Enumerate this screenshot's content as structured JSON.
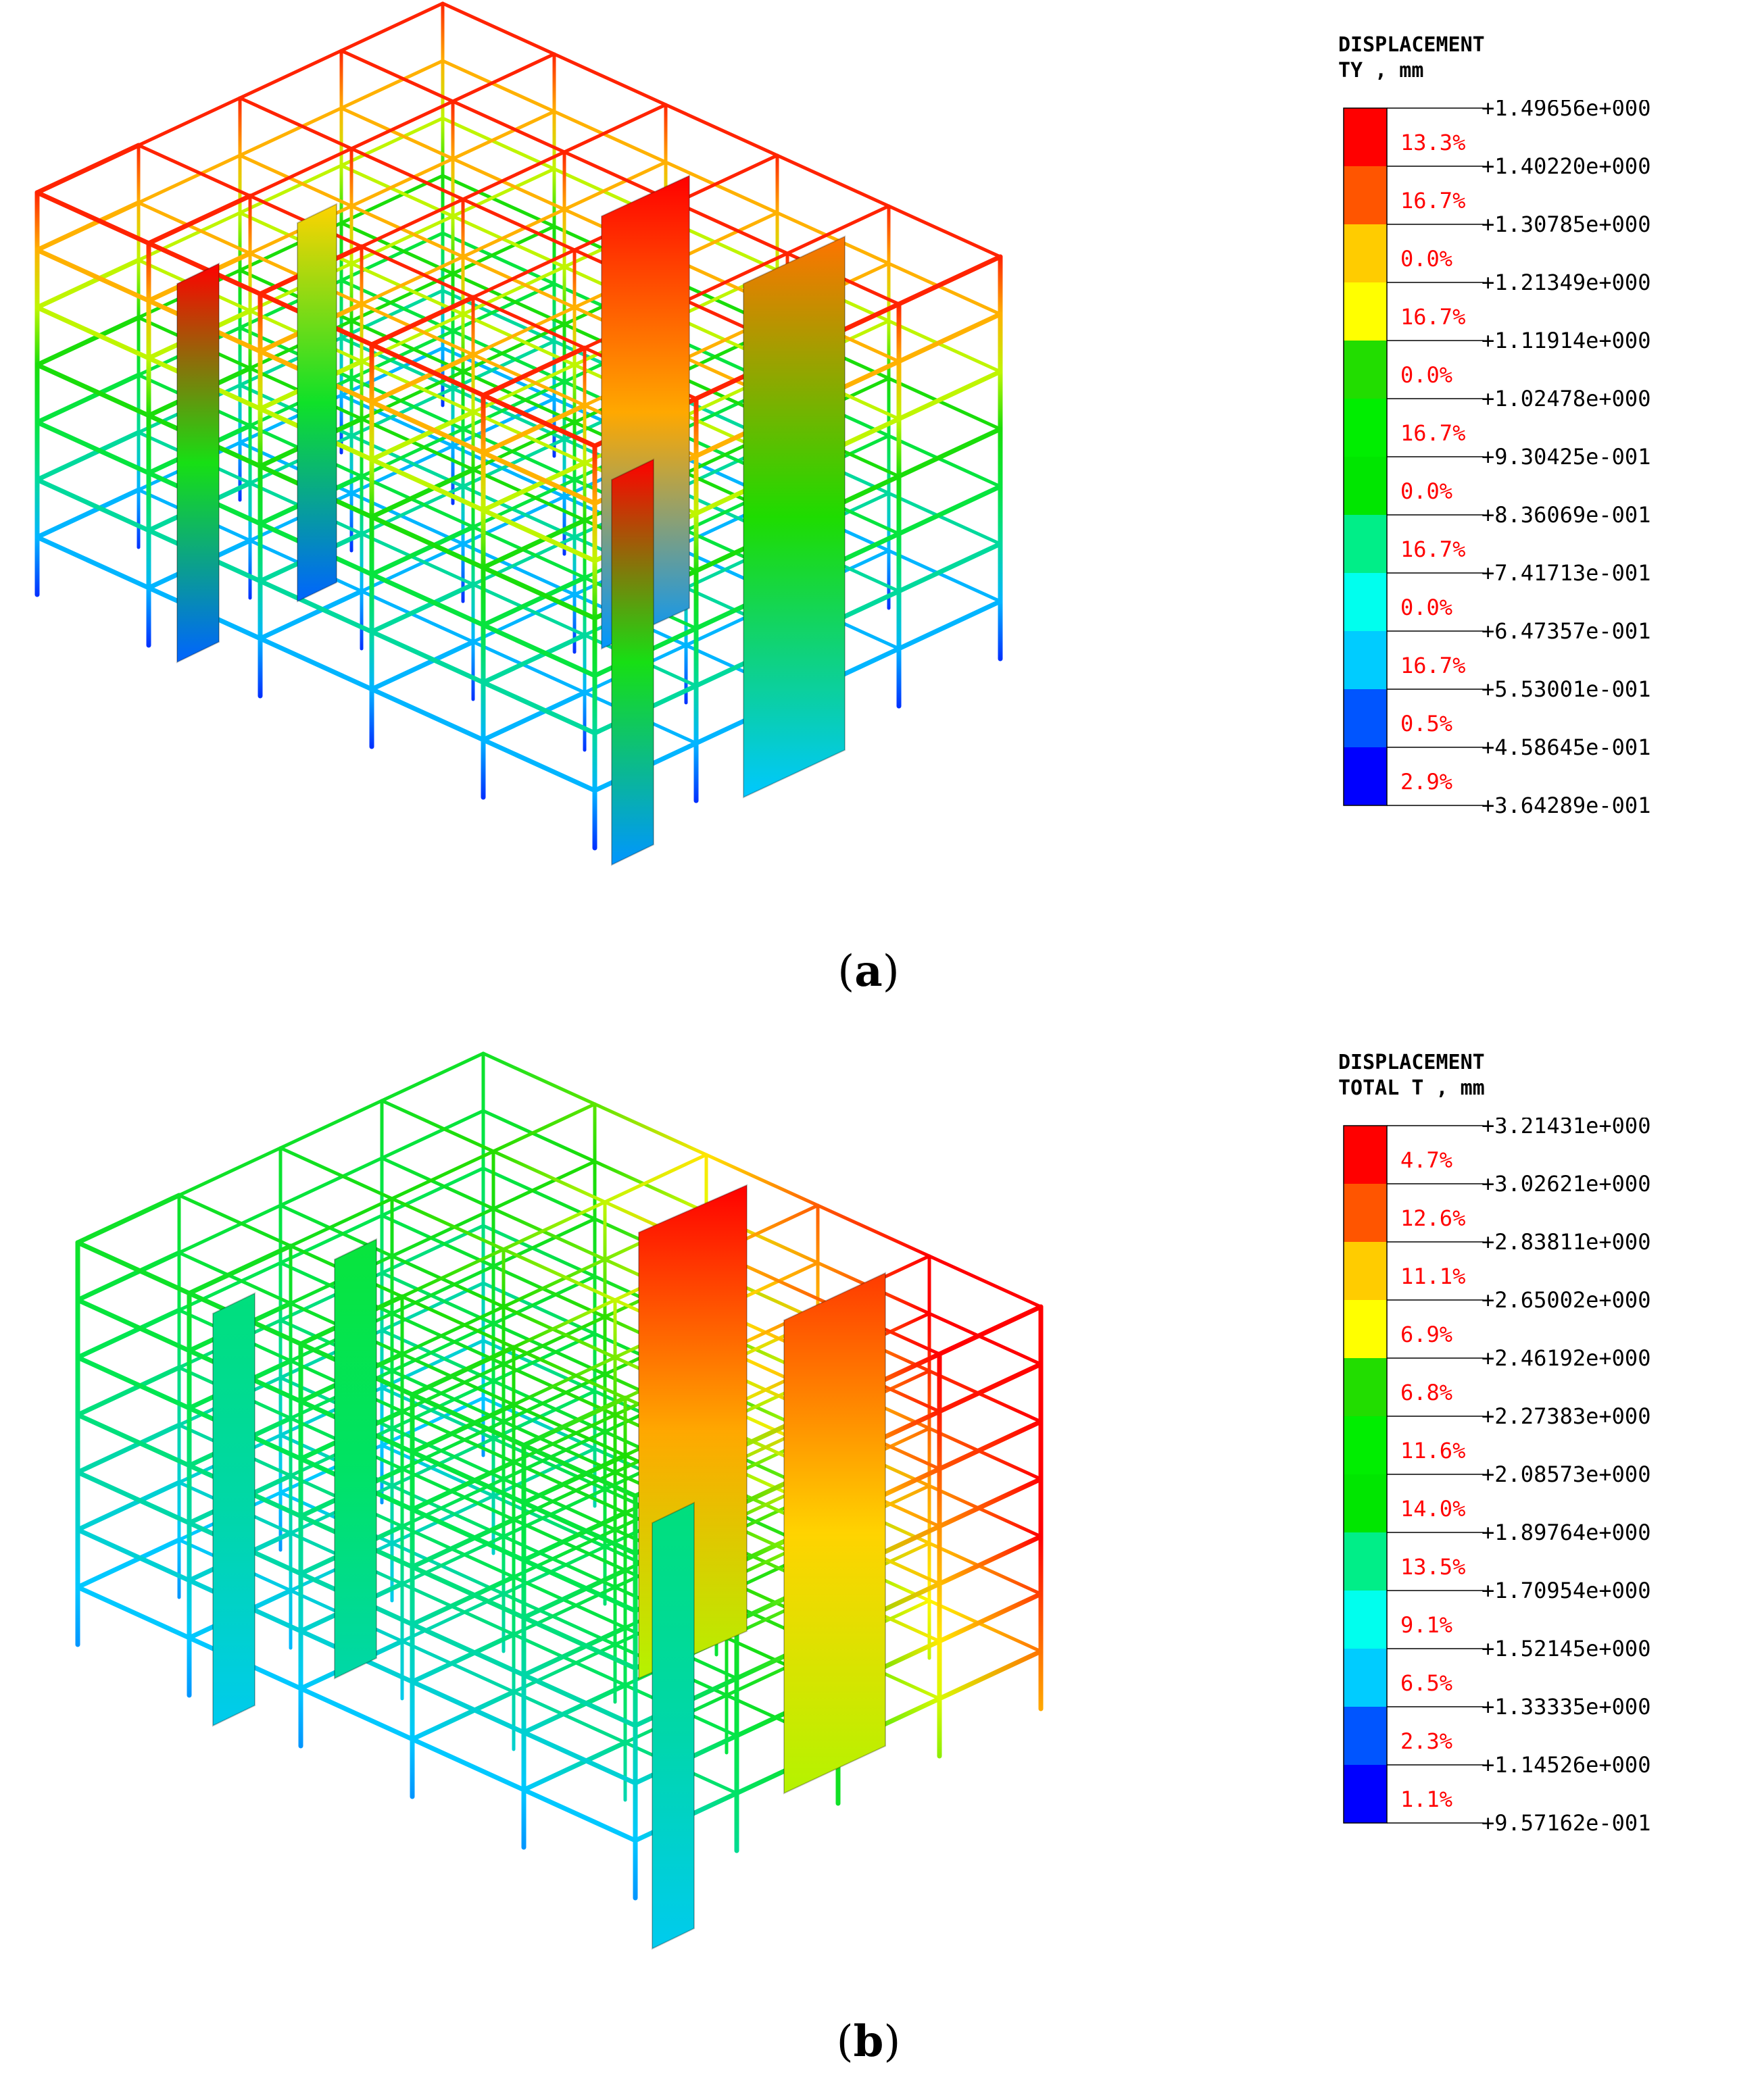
{
  "colors": [
    "#ff0000",
    "#ff5500",
    "#ffcc00",
    "#ffff00",
    "#22dd00",
    "#00ee00",
    "#00e600",
    "#00ee88",
    "#00ffee",
    "#00ccff",
    "#0055ff",
    "#0000ff"
  ],
  "figures": [
    {
      "caption_letter": "a",
      "legend": {
        "title_line1": "DISPLACEMENT",
        "title_line2": "TY , mm",
        "values": [
          "+1.49656e+000",
          "+1.40220e+000",
          "+1.30785e+000",
          "+1.21349e+000",
          "+1.11914e+000",
          "+1.02478e+000",
          "+9.30425e-001",
          "+8.36069e-001",
          "+7.41713e-001",
          "+6.47357e-001",
          "+5.53001e-001",
          "+4.58645e-001",
          "+3.64289e-001"
        ],
        "percents": [
          "13.3%",
          "16.7%",
          "0.0%",
          "16.7%",
          "0.0%",
          "16.7%",
          "0.0%",
          "16.7%",
          "0.0%",
          "16.7%",
          "0.5%",
          "2.9%"
        ]
      }
    },
    {
      "caption_letter": "b",
      "legend": {
        "title_line1": "DISPLACEMENT",
        "title_line2": "TOTAL T , mm",
        "values": [
          "+3.21431e+000",
          "+3.02621e+000",
          "+2.83811e+000",
          "+2.65002e+000",
          "+2.46192e+000",
          "+2.27383e+000",
          "+2.08573e+000",
          "+1.89764e+000",
          "+1.70954e+000",
          "+1.52145e+000",
          "+1.33335e+000",
          "+1.14526e+000",
          "+9.57162e-001"
        ],
        "percents": [
          "4.7%",
          "12.6%",
          "11.1%",
          "6.9%",
          "6.8%",
          "11.6%",
          "14.0%",
          "13.5%",
          "9.1%",
          "6.5%",
          "2.3%",
          "1.1%"
        ]
      }
    }
  ]
}
